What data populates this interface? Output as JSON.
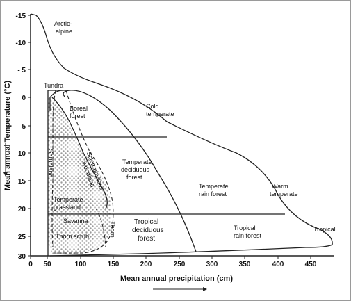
{
  "x_axis": {
    "label": "Mean annual precipitation (cm)",
    "ticks": [
      "0",
      "50",
      "100",
      "150",
      "200",
      "250",
      "300",
      "350",
      "400",
      "450"
    ]
  },
  "y_axis": {
    "label": "Mean annual Temperature (°C)",
    "ticks": [
      "-15",
      "-10",
      "- 5",
      "0",
      "5",
      "10",
      "15",
      "20",
      "25",
      "30"
    ]
  },
  "regions": {
    "arctic_alpine": [
      "Arctic-",
      "alpine"
    ],
    "tundra": [
      "Tundra"
    ],
    "boreal_forest": [
      "Boreal",
      "forest"
    ],
    "cold_temperate": [
      "Cold",
      "temperate"
    ],
    "shrubland": [
      "Shrubland"
    ],
    "sclerophyllous": [
      "Sclerophyllous",
      "woodland"
    ],
    "temperate_deciduous": [
      "Temperate",
      "deciduous",
      "forest"
    ],
    "temperate_rain_forest": [
      "Temperate",
      "rain forest"
    ],
    "warm_temperate": [
      "Warm",
      "temperate"
    ],
    "temperate_grassland": [
      "Temperate",
      "grassland"
    ],
    "savanna": [
      "Savanna"
    ],
    "thorn": [
      "Thorn"
    ],
    "tropical_deciduous": [
      "Tropical",
      "deciduous",
      "forest"
    ],
    "thorn_scrub": [
      "Thorn scrub"
    ],
    "tropical_rain_forest": [
      "Tropical",
      "rain forest"
    ],
    "tropical": [
      "Tropical"
    ]
  },
  "colors": {
    "line": "#222222",
    "dots": "#9a9a9a"
  }
}
